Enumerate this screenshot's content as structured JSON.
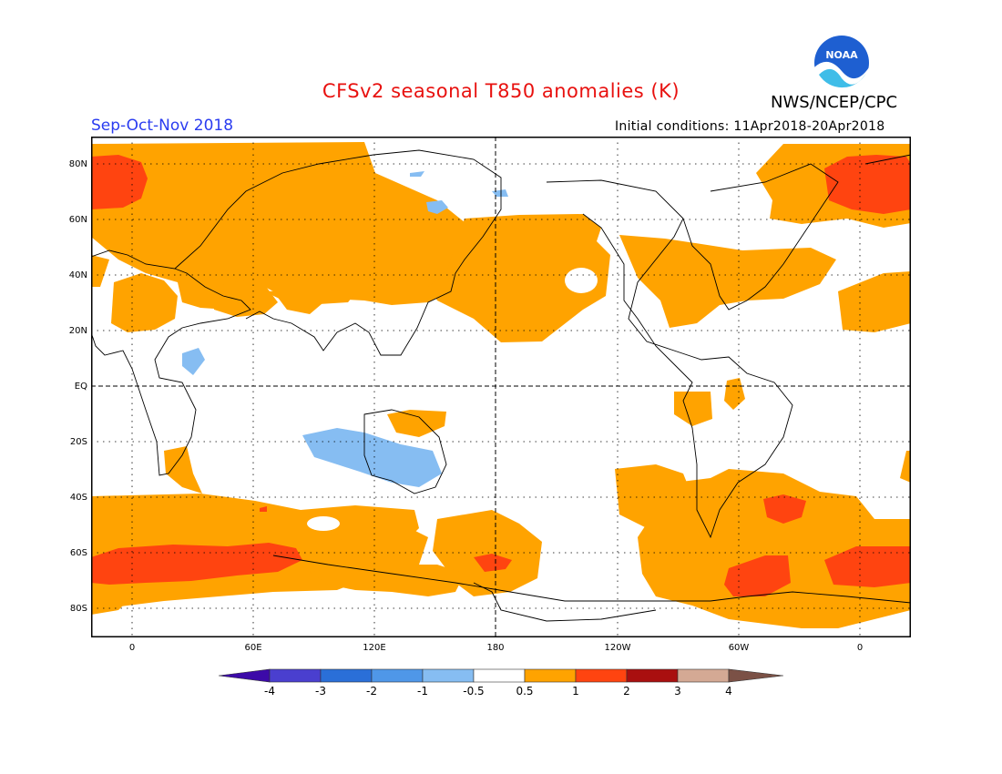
{
  "title": "CFSv2 seasonal T850 anomalies (K)",
  "agency": "NWS/NCEP/CPC",
  "logo_text": "NOAA",
  "season": "Sep-Oct-Nov 2018",
  "initial_conditions": "Initial conditions: 11Apr2018-20Apr2018",
  "latitude_labels": [
    "80N",
    "60N",
    "40N",
    "20N",
    "EQ",
    "20S",
    "40S",
    "60S",
    "80S"
  ],
  "longitude_labels": [
    "0",
    "60E",
    "120E",
    "180",
    "120W",
    "60W",
    "0"
  ],
  "colorbar": {
    "labels": [
      "-4",
      "-3",
      "-2",
      "-1",
      "-0.5",
      "0.5",
      "1",
      "2",
      "3",
      "4"
    ],
    "colors": [
      "#3c0aa8",
      "#4a3fcf",
      "#2a6fd8",
      "#4f97e8",
      "#86bdf2",
      "#ffffff",
      "#ffa300",
      "#ff4410",
      "#a90f0f",
      "#d4a994",
      "#7b5146"
    ]
  },
  "colors": {
    "title": "#e8110f",
    "season": "#2a3cf0",
    "positive_anomaly_0_5_to_1": "#ffa300",
    "positive_anomaly_1_to_2": "#ff4410",
    "negative_anomaly_0_5_to_1": "#86bdf2"
  }
}
